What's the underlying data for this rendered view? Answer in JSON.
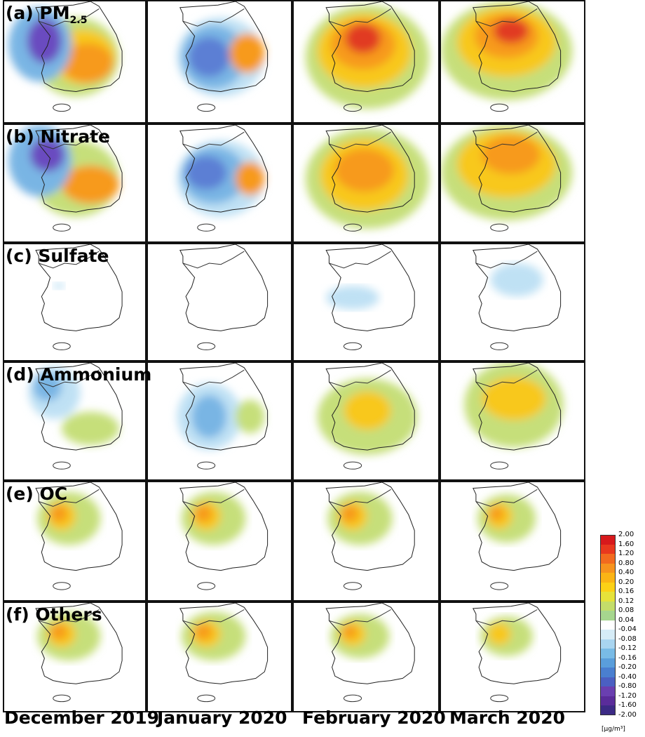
{
  "figure": {
    "row_labels": [
      {
        "prefix": "(a) PM",
        "sub": "2.5"
      },
      {
        "prefix": "(b) Nitrate",
        "sub": ""
      },
      {
        "prefix": "(c) Sulfate",
        "sub": ""
      },
      {
        "prefix": "(d) Ammonium",
        "sub": ""
      },
      {
        "prefix": "(e) OC",
        "sub": ""
      },
      {
        "prefix": "(f) Others",
        "sub": ""
      }
    ],
    "column_labels": [
      "December 2019",
      "January 2020",
      "February 2020",
      "March 2020"
    ]
  },
  "colorbar": {
    "ticks": [
      "2.00",
      "1.60",
      "1.20",
      "0.80",
      "0.40",
      "0.20",
      "0.16",
      "0.12",
      "0.08",
      "0.04",
      "-0.04",
      "-0.08",
      "-0.12",
      "-0.16",
      "-0.20",
      "-0.40",
      "-0.80",
      "-1.20",
      "-1.60",
      "-2.00"
    ],
    "colors": [
      "#d7191c",
      "#e8381e",
      "#f26a1f",
      "#f7931e",
      "#fbb415",
      "#fcd116",
      "#e6e23a",
      "#c4dd6a",
      "#a6d68e",
      "#ffffff",
      "#d6ecf7",
      "#a9d5f0",
      "#79bbe6",
      "#5a9edb",
      "#4a7fd0",
      "#4b5fc2",
      "#6a3fb0",
      "#5a2c9a",
      "#3c2a85"
    ],
    "unit": "[μg/m³]"
  }
}
